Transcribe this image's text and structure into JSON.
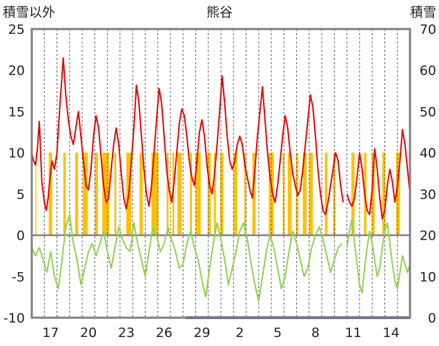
{
  "chart_data": {
    "type": "combo",
    "title": "熊谷",
    "left_axis_label": "積雪以外",
    "right_axis_label": "積雪",
    "left_axis": {
      "min": -10,
      "max": 25,
      "step": 5,
      "ticks": [
        "-10",
        "-5",
        "0",
        "5",
        "10",
        "15",
        "20",
        "25"
      ]
    },
    "right_axis": {
      "min": 0,
      "max": 70,
      "step": 10,
      "ticks": [
        "0",
        "10",
        "20",
        "30",
        "40",
        "50",
        "60",
        "70"
      ]
    },
    "x_axis": {
      "start": 0,
      "end": 30,
      "tick_labels": [
        "17",
        "20",
        "23",
        "26",
        "29",
        "2",
        "5",
        "8",
        "11",
        "14"
      ],
      "tick_positions": [
        1.5,
        4.5,
        7.5,
        10.5,
        13.5,
        16.5,
        19.5,
        22.5,
        25.5,
        28.5
      ]
    },
    "grid": {
      "vertical_dashed": true,
      "zero_line": true
    },
    "colors": {
      "red_series": "#e80000",
      "green_series": "#8fd14f",
      "bars": "#ffc000",
      "snow_series": "#7030a0",
      "zero_line": "#808080",
      "frame": "#7f7f7f"
    },
    "bars": {
      "axis": "left",
      "value": 10,
      "intervals": [
        [
          0.3,
          0.37
        ],
        [
          1.35,
          1.62
        ],
        [
          2.5,
          2.7
        ],
        [
          3.45,
          3.68
        ],
        [
          4.05,
          4.45
        ],
        [
          5.0,
          5.25
        ],
        [
          5.6,
          6.15
        ],
        [
          6.55,
          6.7
        ],
        [
          7.5,
          7.9
        ],
        [
          8.55,
          8.8
        ],
        [
          9.5,
          10.05
        ],
        [
          10.7,
          10.85
        ],
        [
          11.15,
          11.3
        ],
        [
          11.55,
          11.9
        ],
        [
          12.55,
          12.7
        ],
        [
          13.0,
          13.4
        ],
        [
          13.95,
          14.2
        ],
        [
          14.45,
          14.6
        ],
        [
          14.95,
          15.2
        ],
        [
          16.0,
          16.3
        ],
        [
          16.85,
          17.0
        ],
        [
          17.5,
          17.75
        ],
        [
          18.8,
          19.2
        ],
        [
          19.9,
          20.05
        ],
        [
          20.3,
          20.6
        ],
        [
          20.95,
          21.15
        ],
        [
          21.5,
          21.8
        ],
        [
          22.0,
          22.3
        ],
        [
          23.25,
          23.45
        ],
        [
          23.9,
          24.1
        ],
        [
          25.35,
          25.6
        ],
        [
          26.35,
          26.55
        ],
        [
          26.95,
          27.2
        ],
        [
          27.8,
          28.05
        ],
        [
          28.9,
          29.2
        ]
      ]
    },
    "series": [
      {
        "axis": "left",
        "x": [
          0.0,
          0.15,
          0.3,
          0.45,
          0.6,
          0.8,
          1.0,
          1.15,
          1.3,
          1.45,
          1.6,
          1.8,
          2.0,
          2.2,
          2.5,
          2.7,
          2.9,
          3.1,
          3.3,
          3.5,
          3.7,
          3.9,
          4.1,
          4.3,
          4.5,
          4.7,
          4.9,
          5.1,
          5.3,
          5.5,
          5.7,
          5.9,
          6.1,
          6.3,
          6.5,
          6.7,
          6.9,
          7.1,
          7.3,
          7.5,
          7.7,
          7.9,
          8.1,
          8.3,
          8.5,
          8.7,
          8.9,
          9.1,
          9.3,
          9.5,
          9.7,
          9.9,
          10.1,
          10.3,
          10.5,
          10.7,
          10.9,
          11.1,
          11.3,
          11.5,
          11.7,
          11.9,
          12.1,
          12.3,
          12.5,
          12.7,
          12.9,
          13.1,
          13.3,
          13.5,
          13.7,
          13.9,
          14.1,
          14.3,
          14.5,
          14.7,
          14.9,
          15.1,
          15.3,
          15.5,
          15.7,
          15.9,
          16.1,
          16.3,
          16.5,
          16.7,
          16.9,
          17.1,
          17.3,
          17.5,
          17.7,
          17.9,
          18.1,
          18.3,
          18.5,
          18.7,
          18.9,
          19.1,
          19.3,
          19.5,
          19.7,
          19.9,
          20.1,
          20.3,
          20.5,
          20.7,
          20.9,
          21.1,
          21.3,
          21.5,
          21.7,
          21.9,
          22.1,
          22.3,
          22.5,
          22.7,
          22.9,
          23.1,
          23.3,
          23.5,
          23.7,
          23.9,
          24.1,
          24.3,
          24.5,
          24.7
        ],
        "y": [
          10.0,
          9.0,
          8.5,
          10.5,
          13.8,
          6.5,
          4.0,
          3.0,
          4.5,
          7.0,
          9.0,
          8.0,
          10.0,
          15.0,
          21.5,
          17.0,
          14.0,
          12.0,
          11.0,
          13.0,
          15.0,
          12.0,
          9.0,
          6.0,
          5.5,
          8.0,
          12.0,
          14.5,
          13.0,
          9.5,
          6.0,
          4.0,
          4.5,
          8.0,
          11.0,
          13.0,
          11.0,
          7.5,
          4.5,
          3.2,
          5.0,
          9.0,
          13.0,
          18.2,
          16.0,
          12.0,
          8.0,
          5.0,
          3.5,
          6.0,
          10.0,
          14.0,
          17.8,
          16.0,
          12.0,
          8.0,
          5.5,
          4.0,
          6.5,
          10.0,
          13.5,
          15.3,
          14.5,
          12.0,
          9.0,
          7.0,
          6.0,
          9.0,
          12.5,
          14.0,
          12.0,
          8.5,
          6.0,
          5.0,
          7.5,
          11.0,
          15.0,
          19.3,
          16.0,
          12.0,
          9.0,
          8.0,
          9.0,
          11.0,
          12.0,
          11.0,
          8.5,
          7.0,
          5.5,
          4.5,
          8.0,
          12.0,
          15.0,
          18.0,
          14.0,
          10.0,
          7.0,
          5.0,
          4.0,
          6.0,
          9.0,
          12.0,
          14.5,
          13.0,
          10.0,
          7.5,
          6.0,
          4.8,
          5.5,
          8.0,
          11.0,
          14.0,
          17.0,
          15.5,
          12.0,
          8.0,
          5.0,
          3.0,
          2.5,
          4.0,
          6.0,
          8.0,
          10.0,
          9.0,
          6.0,
          4.0
        ]
      },
      {
        "axis": "left",
        "x": [
          0.0,
          0.3,
          0.6,
          0.9,
          1.2,
          1.5,
          1.8,
          2.1,
          2.4,
          2.7,
          3.0,
          3.3,
          3.6,
          3.9,
          4.2,
          4.5,
          4.8,
          5.1,
          5.4,
          5.7,
          6.0,
          6.3,
          6.6,
          6.9,
          7.2,
          7.5,
          7.8,
          8.1,
          8.4,
          8.7,
          9.0,
          9.3,
          9.6,
          9.9,
          10.2,
          10.5,
          10.8,
          11.1,
          11.4,
          11.7,
          12.0,
          12.3,
          12.6,
          12.9,
          13.2,
          13.5,
          13.8,
          14.1,
          14.4,
          14.7,
          15.0,
          15.3,
          15.6,
          15.9,
          16.2,
          16.5,
          16.8,
          17.1,
          17.4,
          17.7,
          18.0,
          18.3,
          18.6,
          18.9,
          19.2,
          19.5,
          19.8,
          20.1,
          20.4,
          20.7,
          21.0,
          21.3,
          21.6,
          21.9,
          22.2,
          22.5,
          22.8,
          23.1,
          23.4,
          23.7,
          24.0,
          24.3,
          24.6
        ],
        "y": [
          -1.5,
          -2.5,
          -1.5,
          -3.0,
          -4.5,
          -2.0,
          -5.0,
          -6.5,
          -3.0,
          1.0,
          2.5,
          -1.0,
          -3.0,
          -6.0,
          -4.0,
          -2.0,
          -1.0,
          -2.5,
          -1.0,
          0.5,
          -2.0,
          -4.0,
          -1.5,
          1.0,
          -0.5,
          -1.5,
          -2.0,
          1.5,
          -1.0,
          -3.0,
          -5.0,
          -2.0,
          1.0,
          0.0,
          -2.0,
          -1.0,
          1.0,
          -0.5,
          -2.0,
          -4.0,
          -3.5,
          -1.0,
          0.5,
          -1.5,
          -3.0,
          -5.5,
          -7.5,
          -4.0,
          -1.0,
          1.5,
          -0.5,
          -3.0,
          -6.0,
          -4.0,
          -2.0,
          0.5,
          1.5,
          -0.5,
          -3.5,
          -6.0,
          -8.0,
          -5.0,
          -2.0,
          0.0,
          -1.5,
          -4.0,
          -6.5,
          -5.0,
          -2.0,
          0.5,
          -1.0,
          -3.0,
          -5.0,
          -4.0,
          -1.5,
          0.0,
          1.0,
          -0.5,
          -2.5,
          -4.5,
          -3.0,
          -1.5,
          -1.0
        ]
      },
      {
        "axis": "left",
        "x": [
          25.0,
          25.2,
          25.4,
          25.6,
          25.8,
          26.0,
          26.2,
          26.4,
          26.6,
          26.8,
          27.0,
          27.2,
          27.4,
          27.6,
          27.8,
          28.0,
          28.2,
          28.4,
          28.6,
          28.8,
          29.0,
          29.2,
          29.4,
          29.6,
          29.8,
          30.0
        ],
        "y": [
          5.0,
          4.0,
          3.5,
          4.5,
          7.0,
          10.0,
          8.0,
          5.0,
          3.0,
          2.5,
          5.5,
          10.5,
          8.0,
          4.5,
          2.0,
          3.0,
          6.0,
          8.0,
          6.5,
          4.0,
          6.0,
          9.0,
          12.8,
          11.0,
          8.0,
          5.0
        ]
      },
      {
        "axis": "left",
        "x": [
          25.0,
          25.2,
          25.4,
          25.6,
          25.8,
          26.0,
          26.2,
          26.4,
          26.6,
          26.8,
          27.0,
          27.2,
          27.4,
          27.6,
          27.8,
          28.0,
          28.2,
          28.4,
          28.6,
          28.8,
          29.0,
          29.2,
          29.4,
          29.6,
          29.8,
          30.0
        ],
        "y": [
          -1.5,
          0.5,
          2.0,
          -1.0,
          -3.5,
          -6.0,
          -7.0,
          -4.0,
          -1.5,
          0.5,
          -1.0,
          -3.0,
          -5.0,
          -4.0,
          -1.5,
          0.5,
          1.5,
          -1.0,
          -3.5,
          -5.5,
          -6.5,
          -4.5,
          -2.5,
          -3.5,
          -4.5,
          -3.5
        ]
      },
      {
        "axis": "right",
        "x": [
          12.2,
          30.0
        ],
        "y": [
          0,
          0
        ]
      }
    ]
  }
}
